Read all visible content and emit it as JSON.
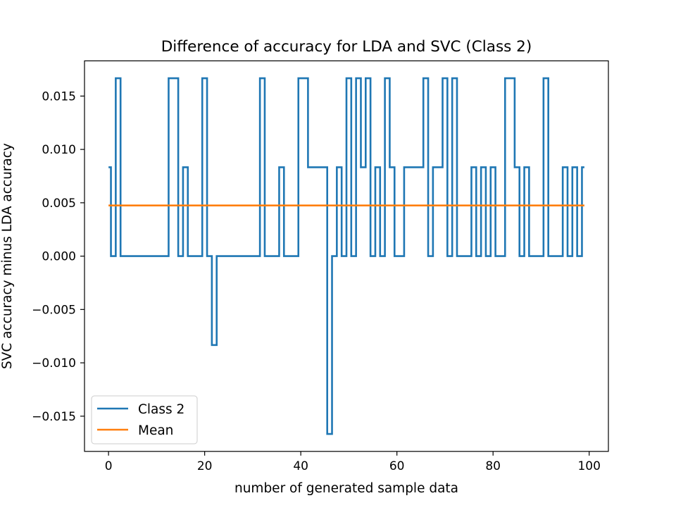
{
  "chart_data": {
    "type": "line",
    "title": "Difference of accuracy for LDA and SVC (Class 2)",
    "xlabel": "number of generated sample data",
    "ylabel": "SVC accuracy minus LDA accuracy",
    "xlim": [
      -5,
      104
    ],
    "ylim": [
      -0.0183,
      0.0183
    ],
    "xticks": [
      0,
      20,
      40,
      60,
      80,
      100
    ],
    "xtick_labels": [
      "0",
      "20",
      "40",
      "60",
      "80",
      "100"
    ],
    "yticks": [
      -0.015,
      -0.01,
      -0.005,
      0.0,
      0.005,
      0.01,
      0.015
    ],
    "ytick_labels": [
      "−0.015",
      "−0.010",
      "−0.005",
      "0.000",
      "0.005",
      "0.010",
      "0.015"
    ],
    "grid": false,
    "legend_position": "lower-left",
    "series": [
      {
        "name": "Class 2",
        "color": "#1f77b4",
        "drawstyle": "steps-mid",
        "x": [
          0,
          1,
          2,
          3,
          4,
          5,
          6,
          7,
          8,
          9,
          10,
          11,
          12,
          13,
          14,
          15,
          16,
          17,
          18,
          19,
          20,
          21,
          22,
          23,
          24,
          25,
          26,
          27,
          28,
          29,
          30,
          31,
          32,
          33,
          34,
          35,
          36,
          37,
          38,
          39,
          40,
          41,
          42,
          43,
          44,
          45,
          46,
          47,
          48,
          49,
          50,
          51,
          52,
          53,
          54,
          55,
          56,
          57,
          58,
          59,
          60,
          61,
          62,
          63,
          64,
          65,
          66,
          67,
          68,
          69,
          70,
          71,
          72,
          73,
          74,
          75,
          76,
          77,
          78,
          79,
          80,
          81,
          82,
          83,
          84,
          85,
          86,
          87,
          88,
          89,
          90,
          91,
          92,
          93,
          94,
          95,
          96,
          97,
          98,
          99
        ],
        "y": [
          0.00833,
          0,
          0.01667,
          0,
          0,
          0,
          0,
          0,
          0,
          0,
          0,
          0,
          0,
          0.01667,
          0.01667,
          0,
          0.00833,
          0,
          0,
          0,
          0.01667,
          0,
          -0.00833,
          0,
          0,
          0,
          0,
          0,
          0,
          0,
          0,
          0,
          0.01667,
          0,
          0,
          0,
          0.00833,
          0,
          0,
          0,
          0.01667,
          0.01667,
          0.00833,
          0.00833,
          0.00833,
          0.00833,
          -0.01667,
          0,
          0.00833,
          0,
          0.01667,
          0,
          0.01667,
          0.00833,
          0.01667,
          0,
          0.00833,
          0,
          0.01667,
          0.00833,
          0,
          0,
          0.00833,
          0.00833,
          0.00833,
          0.00833,
          0.01667,
          0,
          0.00833,
          0.00833,
          0.01667,
          0,
          0.01667,
          0,
          0,
          0,
          0.00833,
          0,
          0.00833,
          0,
          0.00833,
          0,
          0,
          0.01667,
          0.01667,
          0.00833,
          0,
          0.00833,
          0,
          0,
          0,
          0.01667,
          0,
          0,
          0,
          0.00833,
          0,
          0.00833,
          0,
          0.00833
        ]
      },
      {
        "name": "Mean",
        "color": "#ff7f0e",
        "drawstyle": "default",
        "x": [
          0,
          99
        ],
        "y": [
          0.00475,
          0.00475
        ]
      }
    ]
  }
}
